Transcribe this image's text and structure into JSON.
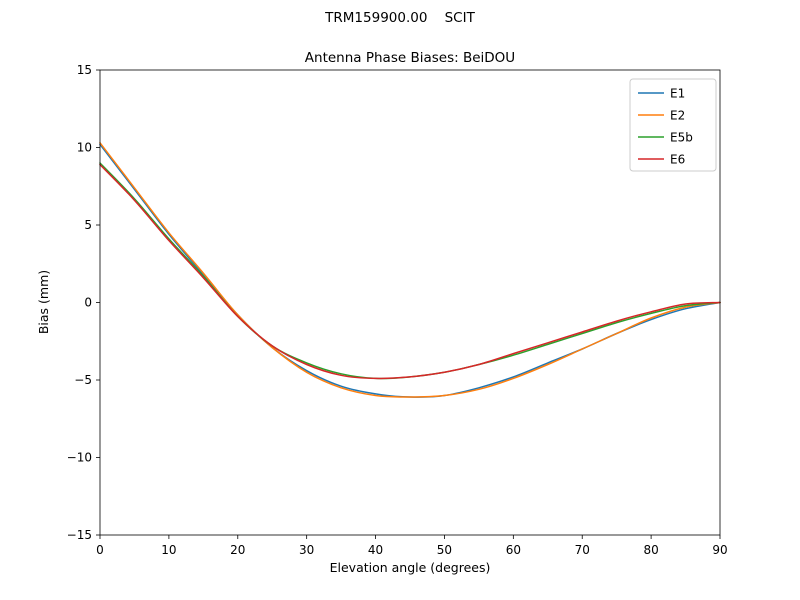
{
  "chart_data": {
    "type": "line",
    "suptitle": "TRM159900.00    SCIT",
    "title": "Antenna Phase Biases: BeiDOU",
    "xlabel": "Elevation angle (degrees)",
    "ylabel": "Bias (mm)",
    "xlim": [
      0,
      90
    ],
    "ylim": [
      -15,
      15
    ],
    "xticks": [
      0,
      10,
      20,
      30,
      40,
      50,
      60,
      70,
      80,
      90
    ],
    "yticks": [
      -15,
      -10,
      -5,
      0,
      5,
      10,
      15
    ],
    "grid": false,
    "legend_position": "upper right",
    "x": [
      0,
      5,
      10,
      15,
      20,
      25,
      30,
      35,
      40,
      45,
      50,
      55,
      60,
      65,
      70,
      75,
      80,
      85,
      90
    ],
    "series": [
      {
        "name": "E1",
        "color": "#1f77b4",
        "values": [
          10.2,
          7.3,
          4.4,
          1.8,
          -0.8,
          -2.9,
          -4.4,
          -5.4,
          -5.9,
          -6.1,
          -6.0,
          -5.5,
          -4.8,
          -3.9,
          -3.0,
          -2.0,
          -1.1,
          -0.4,
          0.0
        ]
      },
      {
        "name": "E2",
        "color": "#ff7f0e",
        "values": [
          10.3,
          7.4,
          4.5,
          1.9,
          -0.8,
          -2.9,
          -4.5,
          -5.5,
          -6.0,
          -6.1,
          -6.0,
          -5.6,
          -4.9,
          -4.0,
          -3.0,
          -2.0,
          -1.0,
          -0.3,
          0.0
        ]
      },
      {
        "name": "E5b",
        "color": "#2ca02c",
        "values": [
          9.0,
          6.7,
          4.1,
          1.7,
          -0.9,
          -2.8,
          -3.9,
          -4.6,
          -4.9,
          -4.8,
          -4.5,
          -4.0,
          -3.4,
          -2.7,
          -2.0,
          -1.3,
          -0.7,
          -0.2,
          0.0
        ]
      },
      {
        "name": "E6",
        "color": "#d62728",
        "values": [
          8.9,
          6.6,
          4.0,
          1.6,
          -0.9,
          -2.8,
          -4.0,
          -4.7,
          -4.9,
          -4.8,
          -4.5,
          -4.0,
          -3.3,
          -2.6,
          -1.9,
          -1.2,
          -0.6,
          -0.1,
          0.0
        ]
      }
    ]
  }
}
